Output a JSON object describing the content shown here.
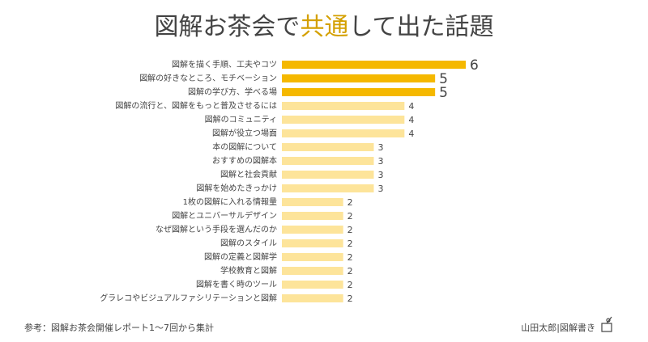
{
  "chart_data": {
    "type": "bar",
    "title_parts": [
      "図解お茶会で",
      "共通",
      "して出た話題"
    ],
    "title_colors": [
      "#444444",
      "#d4a000",
      "#444444"
    ],
    "categories": [
      "図解を描く手順、工夫やコツ",
      "図解の好きなところ、モチベーション",
      "図解の学び方、学べる場",
      "図解の流行と、図解をもっと普及させるには",
      "図解のコミュニティ",
      "図解が役立つ場面",
      "本の図解について",
      "おすすめの図解本",
      "図解と社会貢献",
      "図解を始めたきっかけ",
      "1枚の図解に入れる情報量",
      "図解とユニバーサルデザイン",
      "なぜ図解という手段を選んだのか",
      "図解のスタイル",
      "図解の定義と図解学",
      "学校教育と図解",
      "図解を書く時のツール",
      "グラレコやビジュアルファシリテーションと図解"
    ],
    "values": [
      6,
      5,
      5,
      4,
      4,
      4,
      3,
      3,
      3,
      3,
      2,
      2,
      2,
      2,
      2,
      2,
      2,
      2
    ],
    "colors": [
      "#f5b800",
      "#f5b800",
      "#f5b800",
      "#fde49a",
      "#fde49a",
      "#fde49a",
      "#fde49a",
      "#fde49a",
      "#fde49a",
      "#fde49a",
      "#fde49a",
      "#fde49a",
      "#fde49a",
      "#fde49a",
      "#fde49a",
      "#fde49a",
      "#fde49a",
      "#fde49a"
    ],
    "note": "参考：図解お茶会開催レポート1〜7回から集計",
    "author": "山田太郎|図解書き"
  }
}
